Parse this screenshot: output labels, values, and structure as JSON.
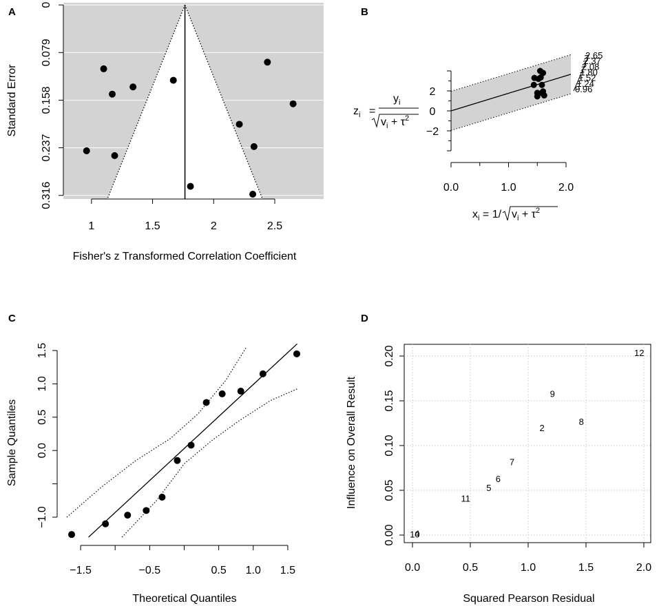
{
  "chart_data": [
    {
      "panel": "A",
      "type": "scatter",
      "subtype": "funnel",
      "xlabel": "Fisher's z Transformed Correlation Coefficient",
      "ylabel": "Standard Error",
      "xlim": [
        0.77,
        2.9
      ],
      "ylim": [
        0.322,
        -0.0036
      ],
      "xticks": [
        1,
        1.5,
        2,
        2.5
      ],
      "xtick_labels": [
        "1",
        "1.5",
        "2",
        "2.5"
      ],
      "yticks": [
        0,
        0.079,
        0.158,
        0.237,
        0.316
      ],
      "ytick_labels": [
        "0",
        "0.079",
        "0.158",
        "0.237",
        "0.316"
      ],
      "center": 1.765,
      "funnel_bottom_se": 0.322,
      "funnel_half_width_at_bottom": 0.635,
      "points": [
        {
          "x": 1.1,
          "y": 0.106
        },
        {
          "x": 1.17,
          "y": 0.148
        },
        {
          "x": 1.34,
          "y": 0.136
        },
        {
          "x": 1.67,
          "y": 0.125
        },
        {
          "x": 0.96,
          "y": 0.242
        },
        {
          "x": 1.19,
          "y": 0.25
        },
        {
          "x": 1.81,
          "y": 0.301
        },
        {
          "x": 2.21,
          "y": 0.198
        },
        {
          "x": 2.33,
          "y": 0.235
        },
        {
          "x": 2.44,
          "y": 0.095
        },
        {
          "x": 2.65,
          "y": 0.164
        },
        {
          "x": 2.32,
          "y": 0.314
        }
      ]
    },
    {
      "panel": "B",
      "type": "scatter",
      "subtype": "radial",
      "ylabel_text": {
        "lhs": "z",
        "lhs_sub": "i",
        "num": "y",
        "num_sub": "i",
        "den_a": "v",
        "den_sub": "i",
        "den_b": " + τ",
        "den_sup": "2"
      },
      "xlabel_text": {
        "lhs": "x",
        "lhs_sub": "i",
        "eq": " = 1/",
        "den_a": "v",
        "den_sub": "i",
        "den_b": " + τ",
        "den_sup": "2"
      },
      "xlim": [
        0,
        2.05
      ],
      "ylim": [
        -3.8,
        4.3
      ],
      "xticks": [
        0,
        1,
        2
      ],
      "xtick_labels": [
        "0.0",
        "1.0",
        "2.0"
      ],
      "yticks": [
        -2,
        0,
        2
      ],
      "ytick_labels": [
        "−2",
        "0",
        "2"
      ],
      "intercept": 0,
      "slope": 1.76,
      "band_half_width": 1.96,
      "arc_labels": [
        "2.65",
        "2.37",
        "2.08",
        "1.80",
        "1.52",
        "1.24",
        "0.96"
      ],
      "points": [
        {
          "x": 1.55,
          "y": 4.0
        },
        {
          "x": 1.6,
          "y": 3.8
        },
        {
          "x": 1.45,
          "y": 3.3
        },
        {
          "x": 1.52,
          "y": 3.2
        },
        {
          "x": 1.56,
          "y": 3.35
        },
        {
          "x": 1.44,
          "y": 2.6
        },
        {
          "x": 1.58,
          "y": 2.6
        },
        {
          "x": 1.5,
          "y": 1.8
        },
        {
          "x": 1.58,
          "y": 1.8
        },
        {
          "x": 1.6,
          "y": 1.95
        },
        {
          "x": 1.5,
          "y": 1.45
        },
        {
          "x": 1.62,
          "y": 1.55
        }
      ]
    },
    {
      "panel": "C",
      "type": "scatter",
      "subtype": "qq",
      "xlabel": "Theoretical Quantiles",
      "ylabel": "Sample Quantiles",
      "xlim": [
        -1.75,
        1.75
      ],
      "ylim": [
        -1.3,
        1.6
      ],
      "xticks": [
        -1.5,
        -0.5,
        0.5,
        1,
        1.5
      ],
      "xtick_labels": [
        "−1.5",
        "−0.5",
        "0.5",
        "1.0",
        "1.5"
      ],
      "yticks": [
        -1.0,
        0.0,
        0.5,
        1.0,
        1.5
      ],
      "ytick_labels": [
        "−1.0",
        "0.0",
        "0.5",
        "1.0",
        "1.5"
      ],
      "reference_line": {
        "intercept": 0.03,
        "slope": 0.96
      },
      "envelope_upper": [
        [
          -1.7,
          -1.0
        ],
        [
          -1.2,
          -0.55
        ],
        [
          -0.7,
          -0.15
        ],
        [
          -0.2,
          0.18
        ],
        [
          0.2,
          0.55
        ],
        [
          0.6,
          1.05
        ],
        [
          0.9,
          1.55
        ]
      ],
      "envelope_lower": [
        [
          -0.9,
          -1.3
        ],
        [
          -0.4,
          -0.75
        ],
        [
          0.0,
          -0.2
        ],
        [
          0.4,
          0.15
        ],
        [
          0.8,
          0.45
        ],
        [
          1.25,
          0.75
        ],
        [
          1.65,
          0.93
        ]
      ],
      "points": [
        {
          "x": -1.63,
          "y": -1.26
        },
        {
          "x": -1.14,
          "y": -1.1
        },
        {
          "x": -0.82,
          "y": -0.97
        },
        {
          "x": -0.55,
          "y": -0.9
        },
        {
          "x": -0.32,
          "y": -0.7
        },
        {
          "x": -0.1,
          "y": -0.15
        },
        {
          "x": 0.1,
          "y": 0.08
        },
        {
          "x": 0.32,
          "y": 0.72
        },
        {
          "x": 0.55,
          "y": 0.85
        },
        {
          "x": 0.82,
          "y": 0.89
        },
        {
          "x": 1.14,
          "y": 1.15
        },
        {
          "x": 1.63,
          "y": 1.45
        }
      ]
    },
    {
      "panel": "D",
      "type": "scatter",
      "subtype": "labeled",
      "xlabel": "Squared Pearson Residual",
      "ylabel": "Influence on Overall Result",
      "xlim": [
        -0.05,
        2.05
      ],
      "ylim": [
        -0.008,
        0.208
      ],
      "xticks": [
        0,
        0.5,
        1,
        1.5,
        2
      ],
      "xtick_labels": [
        "0.0",
        "0.5",
        "1.0",
        "1.5",
        "2.0"
      ],
      "yticks": [
        0,
        0.05,
        0.1,
        0.15,
        0.2
      ],
      "ytick_labels": [
        "0.00",
        "0.05",
        "0.10",
        "0.15",
        "0.20"
      ],
      "grid": true,
      "points": [
        {
          "label": "12",
          "x": 1.96,
          "y": 0.204
        },
        {
          "label": "9",
          "x": 1.21,
          "y": 0.158
        },
        {
          "label": "8",
          "x": 1.46,
          "y": 0.127
        },
        {
          "label": "2",
          "x": 1.12,
          "y": 0.12
        },
        {
          "label": "7",
          "x": 0.86,
          "y": 0.082
        },
        {
          "label": "6",
          "x": 0.74,
          "y": 0.063
        },
        {
          "label": "5",
          "x": 0.66,
          "y": 0.053
        },
        {
          "label": "11",
          "x": 0.46,
          "y": 0.041
        },
        {
          "label": "4",
          "x": 0.04,
          "y": 0.002
        },
        {
          "label": "10",
          "x": 0.02,
          "y": 0.001
        }
      ]
    }
  ]
}
